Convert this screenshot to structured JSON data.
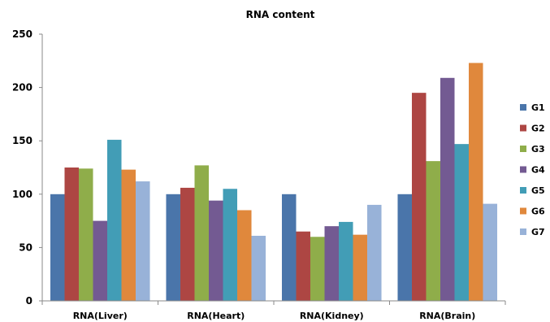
{
  "chart_data": {
    "type": "bar",
    "title": "RNA content",
    "xlabel": "",
    "ylabel": "",
    "categories": [
      "RNA(Liver)",
      "RNA(Heart)",
      "RNA(Kidney)",
      "RNA(Brain)"
    ],
    "ylim": [
      0,
      250
    ],
    "yticks": [
      0,
      50,
      100,
      150,
      200,
      250
    ],
    "grid": false,
    "legend_position": "right",
    "series": [
      {
        "name": "G1",
        "color": "#4a75aa",
        "values": [
          100,
          100,
          100,
          100
        ]
      },
      {
        "name": "G2",
        "color": "#ad4643",
        "values": [
          125,
          106,
          65,
          195
        ]
      },
      {
        "name": "G3",
        "color": "#8fad4a",
        "values": [
          124,
          127,
          60,
          131
        ]
      },
      {
        "name": "G4",
        "color": "#735a92",
        "values": [
          75,
          94,
          70,
          209
        ]
      },
      {
        "name": "G5",
        "color": "#429db6",
        "values": [
          151,
          105,
          74,
          147
        ]
      },
      {
        "name": "G6",
        "color": "#e0883c",
        "values": [
          123,
          85,
          62,
          223
        ]
      },
      {
        "name": "G7",
        "color": "#98b2d8",
        "values": [
          112,
          61,
          90,
          91
        ]
      }
    ]
  }
}
